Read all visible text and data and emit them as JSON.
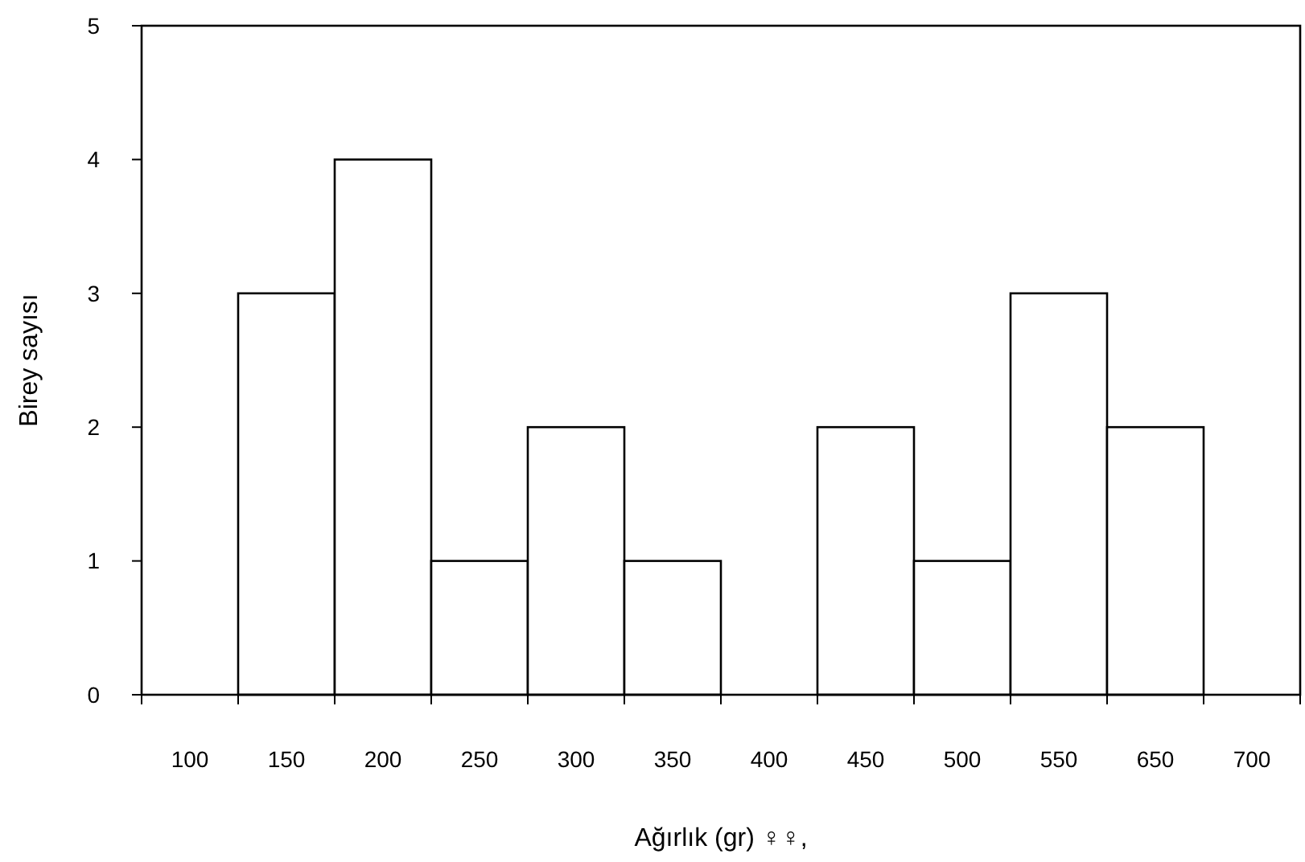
{
  "chart_data": {
    "type": "bar",
    "xlabel": "Ağırlık (gr) ♀♀,",
    "ylabel": "Birey sayısı",
    "categories": [
      "100",
      "150",
      "200",
      "250",
      "300",
      "350",
      "400",
      "450",
      "500",
      "550",
      "650",
      "700"
    ],
    "values": [
      0,
      3,
      4,
      1,
      2,
      1,
      0,
      2,
      1,
      3,
      2,
      0
    ],
    "color": "#ffffff",
    "ylim": [
      0,
      5
    ],
    "yticks": [
      0,
      1,
      2,
      3,
      4,
      5
    ],
    "grid": false
  }
}
